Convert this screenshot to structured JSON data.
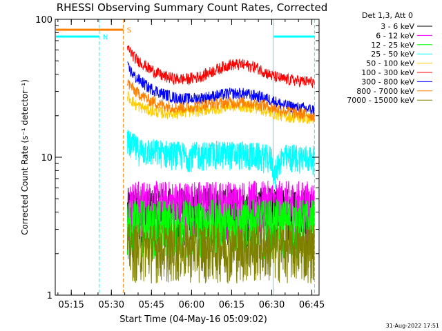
{
  "chart_data": {
    "type": "line",
    "title": "RHESSI Observing Summary Count Rates, Corrected",
    "xlabel": "Start Time (04-May-16 05:09:02)",
    "ylabel": "Corrected Count Rate (s⁻¹ detector⁻¹)",
    "y_scale": "log",
    "ylim": [
      1,
      100
    ],
    "xlim_minutes": [
      0,
      98.7
    ],
    "x_start": "05:09:02",
    "x_ticks": [
      "05:15",
      "05:30",
      "05:45",
      "06:00",
      "06:15",
      "06:30",
      "06:45"
    ],
    "x_tick_minutes": [
      6,
      21,
      36,
      51,
      66,
      81,
      96
    ],
    "y_ticks": [
      "1",
      "10",
      "100"
    ],
    "y_tick_values": [
      1,
      10,
      100
    ],
    "legend_title": "Det 1,3, Att 0",
    "legend_placement": "right",
    "data_start_minute": 27,
    "data_end_minute": 97,
    "series": [
      {
        "name": "3 - 6 keV",
        "color": "#000000",
        "style": "noisy",
        "points": [
          [
            27,
            4.0
          ],
          [
            97,
            4.0
          ]
        ]
      },
      {
        "name": "6 - 12 keV",
        "color": "#ff00ff",
        "style": "noisy",
        "points": [
          [
            27,
            4.5
          ],
          [
            97,
            4.5
          ]
        ]
      },
      {
        "name": "12 - 25 keV",
        "color": "#00ff00",
        "style": "noisy",
        "points": [
          [
            27,
            3.3
          ],
          [
            97,
            3.3
          ]
        ]
      },
      {
        "name": "25 - 50 keV",
        "color": "#00ffff",
        "style": "noisy",
        "points": [
          [
            27,
            12.5
          ],
          [
            31,
            11
          ],
          [
            40,
            10.5
          ],
          [
            50,
            10
          ],
          [
            60,
            10.3
          ],
          [
            70,
            10.2
          ],
          [
            75,
            10
          ],
          [
            81,
            9.5
          ],
          [
            82,
            7
          ],
          [
            84,
            9.5
          ],
          [
            90,
            9.8
          ],
          [
            97,
            9.5
          ]
        ]
      },
      {
        "name": "50 - 100 keV",
        "color": "#ffcc00",
        "style": "line",
        "points": [
          [
            27,
            28
          ],
          [
            30,
            24
          ],
          [
            35,
            22
          ],
          [
            40,
            21
          ],
          [
            45,
            21
          ],
          [
            50,
            21.5
          ],
          [
            55,
            22
          ],
          [
            60,
            22.5
          ],
          [
            65,
            23.5
          ],
          [
            70,
            23.5
          ],
          [
            75,
            23
          ],
          [
            78,
            22
          ],
          [
            81,
            21
          ],
          [
            85,
            20
          ],
          [
            90,
            19.5
          ],
          [
            97,
            19
          ]
        ]
      },
      {
        "name": "100 - 300 keV",
        "color": "#ff0000",
        "style": "line",
        "points": [
          [
            27,
            62
          ],
          [
            30,
            52
          ],
          [
            35,
            44
          ],
          [
            40,
            39
          ],
          [
            45,
            37
          ],
          [
            50,
            37
          ],
          [
            55,
            39
          ],
          [
            60,
            43
          ],
          [
            65,
            47
          ],
          [
            70,
            47
          ],
          [
            75,
            45
          ],
          [
            78,
            42
          ],
          [
            81,
            39
          ],
          [
            85,
            37
          ],
          [
            90,
            36
          ],
          [
            97,
            35
          ]
        ]
      },
      {
        "name": "300 - 800 keV",
        "color": "#0000ff",
        "style": "line",
        "points": [
          [
            27,
            45
          ],
          [
            30,
            38
          ],
          [
            35,
            32
          ],
          [
            40,
            29
          ],
          [
            45,
            27
          ],
          [
            50,
            26.5
          ],
          [
            55,
            27
          ],
          [
            60,
            28
          ],
          [
            65,
            29
          ],
          [
            70,
            29
          ],
          [
            75,
            28
          ],
          [
            78,
            27
          ],
          [
            81,
            26
          ],
          [
            85,
            24
          ],
          [
            90,
            23
          ],
          [
            97,
            22
          ]
        ]
      },
      {
        "name": "800 - 7000 keV",
        "color": "#ff7f00",
        "style": "line",
        "points": [
          [
            27,
            35
          ],
          [
            30,
            30
          ],
          [
            35,
            26
          ],
          [
            40,
            24
          ],
          [
            45,
            23
          ],
          [
            50,
            23
          ],
          [
            55,
            24
          ],
          [
            60,
            24.5
          ],
          [
            65,
            25
          ],
          [
            70,
            25
          ],
          [
            75,
            24.5
          ],
          [
            78,
            24
          ],
          [
            81,
            23
          ],
          [
            85,
            22
          ],
          [
            90,
            21
          ],
          [
            97,
            20
          ]
        ]
      },
      {
        "name": "7000 - 15000 keV",
        "color": "#808000",
        "style": "noisy",
        "points": [
          [
            27,
            2.2
          ],
          [
            97,
            2.2
          ]
        ]
      }
    ],
    "event_bars": [
      {
        "label": "S",
        "color": "#ff7f00",
        "start_minute": 0,
        "end_minute": 25.5,
        "level": 84
      },
      {
        "label": "N",
        "color": "#00ffff",
        "start_minute": 0,
        "end_minute": 16.5,
        "level": 75
      },
      {
        "label": "",
        "color": "#00ffff",
        "start_minute": 81.5,
        "end_minute": 97,
        "level": 75
      }
    ],
    "vertical_lines": [
      {
        "minute": 16.5,
        "color": "#00ffff",
        "dashed": true
      },
      {
        "minute": 25.5,
        "color": "#ff7f00",
        "dashed": true
      },
      {
        "minute": 81.5,
        "color": "#00ffff",
        "dashed": false
      },
      {
        "minute": 97,
        "color": "#00ffff",
        "dashed": true
      }
    ]
  },
  "footer": {
    "date": "31-Aug-2022 17:51"
  }
}
